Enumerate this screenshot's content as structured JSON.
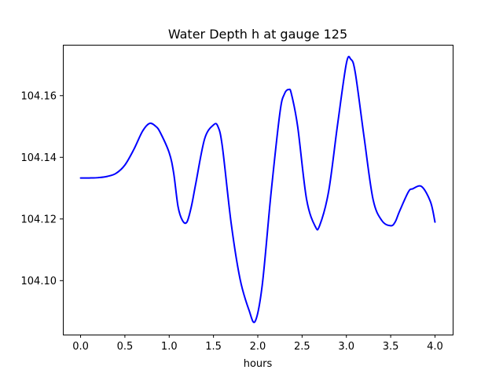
{
  "chart_data": {
    "type": "line",
    "title": "Water Depth h at gauge 125",
    "xlabel": "hours",
    "ylabel": "",
    "xlim": [
      -0.2,
      4.2
    ],
    "ylim": [
      104.0825,
      104.1765
    ],
    "x_ticks": [
      0.0,
      0.5,
      1.0,
      1.5,
      2.0,
      2.5,
      3.0,
      3.5,
      4.0
    ],
    "x_tick_labels": [
      "0.0",
      "0.5",
      "1.0",
      "1.5",
      "2.0",
      "2.5",
      "3.0",
      "3.5",
      "4.0"
    ],
    "y_ticks": [
      104.1,
      104.12,
      104.14,
      104.16
    ],
    "y_tick_labels": [
      "104.10",
      "104.12",
      "104.14",
      "104.16"
    ],
    "grid": false,
    "series": [
      {
        "color": "#0000ff",
        "x": [
          0.0,
          0.1,
          0.2,
          0.3,
          0.4,
          0.5,
          0.6,
          0.7,
          0.78,
          0.85,
          0.9,
          1.0,
          1.05,
          1.1,
          1.15,
          1.2,
          1.25,
          1.3,
          1.4,
          1.5,
          1.55,
          1.6,
          1.7,
          1.8,
          1.9,
          1.97,
          2.05,
          2.15,
          2.25,
          2.3,
          2.35,
          2.38,
          2.45,
          2.55,
          2.65,
          2.7,
          2.8,
          2.9,
          3.0,
          3.05,
          3.1,
          3.2,
          3.3,
          3.4,
          3.5,
          3.55,
          3.6,
          3.7,
          3.75,
          3.85,
          3.95,
          4.0
        ],
        "y": [
          104.1333,
          104.1333,
          104.1334,
          104.1338,
          104.1348,
          104.1375,
          104.1425,
          104.1485,
          104.151,
          104.15,
          104.148,
          104.1415,
          104.135,
          104.124,
          104.1195,
          104.119,
          104.124,
          104.1315,
          104.146,
          104.1505,
          104.15,
          104.1435,
          104.1185,
          104.1005,
          104.0905,
          104.0868,
          104.0985,
          104.1285,
          104.1545,
          104.1605,
          104.162,
          104.1605,
          104.15,
          104.1265,
          104.1175,
          104.118,
          104.129,
          104.1505,
          104.1705,
          104.1718,
          104.1675,
          104.1465,
          104.1265,
          104.1195,
          104.1178,
          104.119,
          104.1225,
          104.1288,
          104.1298,
          104.1305,
          104.1255,
          104.119
        ]
      }
    ]
  }
}
